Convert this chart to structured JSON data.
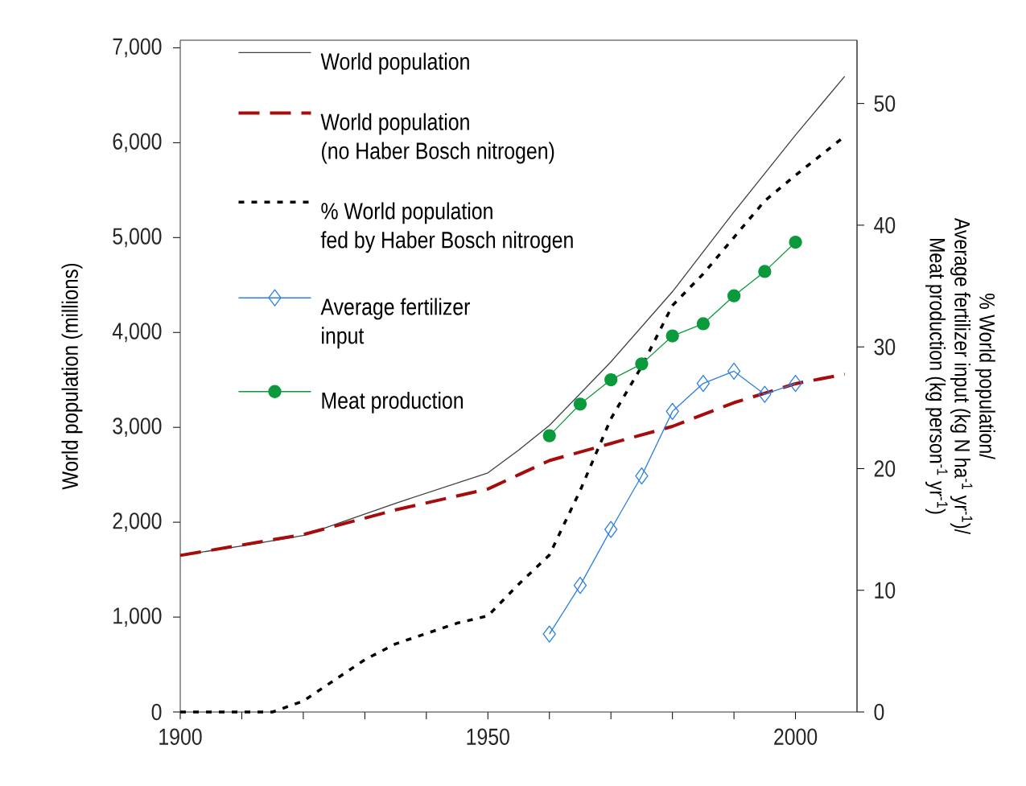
{
  "chart_data": {
    "type": "line",
    "x": [
      1900,
      1910,
      1920,
      1935,
      1950,
      1955,
      1960,
      1970,
      1980,
      1990,
      2000,
      2008
    ],
    "series": [
      {
        "name": "World population",
        "color": "#404040",
        "line_style": "solid",
        "marker": "none",
        "values": [
          1650,
          1750,
          1860,
          2200,
          2520,
          2760,
          3020,
          3690,
          4430,
          5270,
          6080,
          6700
        ]
      },
      {
        "name": "World population (no Haber Bosch nitrogen)",
        "color": "#a50d0d",
        "line_style": "dashed",
        "marker": "none",
        "values": [
          1650,
          1760,
          1870,
          2130,
          2350,
          2500,
          2650,
          2830,
          3010,
          3260,
          3460,
          3560
        ]
      },
      {
        "name": "% World population fed by Haber Bosch nitrogen",
        "color": "#000000",
        "line_style": "dotted",
        "marker": "none",
        "axis": "y2",
        "x": [
          1900,
          1915,
          1920,
          1930,
          1935,
          1945,
          1950,
          1955,
          1960,
          1965,
          1970,
          1975,
          1980,
          1985,
          1990,
          1995,
          2000,
          2008
        ],
        "values": [
          0,
          0,
          0.9,
          4.3,
          5.6,
          7.3,
          7.9,
          10.5,
          12.9,
          18.2,
          24.1,
          28.4,
          33.4,
          36,
          39,
          42,
          44.1,
          47.3
        ]
      },
      {
        "name": "Average fertilizer input",
        "color": "#2a7fdf",
        "line_style": "solid",
        "marker": "diamond",
        "axis": "y2",
        "x": [
          1960,
          1965,
          1970,
          1975,
          1980,
          1985,
          1990,
          1995,
          2000
        ],
        "values": [
          6.4,
          10.4,
          15.0,
          19.4,
          24.7,
          27.0,
          28.0,
          26.1,
          27.0
        ]
      },
      {
        "name": "Meat production",
        "color": "#0a9a3c",
        "line_style": "solid",
        "marker": "circle",
        "axis": "y2",
        "x": [
          1960,
          1965,
          1970,
          1975,
          1980,
          1985,
          1990,
          1995,
          2000
        ],
        "values": [
          22.7,
          25.3,
          27.3,
          28.6,
          30.9,
          31.9,
          34.2,
          36.2,
          38.6
        ]
      }
    ],
    "xlim": [
      1900,
      2010
    ],
    "xticks": [
      1900,
      {
        "value": 1910,
        "label": null
      },
      {
        "value": 1920,
        "label": null
      },
      {
        "value": 1930,
        "label": null
      },
      {
        "value": 1940,
        "label": null
      },
      1950,
      {
        "value": 1960,
        "label": null
      },
      {
        "value": 1970,
        "label": null
      },
      {
        "value": 1980,
        "label": null
      },
      {
        "value": 1990,
        "label": null
      },
      2000
    ],
    "ylim": [
      0,
      7080
    ],
    "yticks": [
      0,
      {
        "value": 1000,
        "label": "1,000"
      },
      {
        "value": 2000,
        "label": "2,000"
      },
      {
        "value": 3000,
        "label": "3,000"
      },
      {
        "value": 4000,
        "label": "4,000"
      },
      {
        "value": 5000,
        "label": "5,000"
      },
      {
        "value": 6000,
        "label": "6,000"
      },
      {
        "value": 7000,
        "label": "7,000"
      }
    ],
    "y2lim": [
      0,
      55.2
    ],
    "y2ticks": [
      0,
      10,
      20,
      30,
      40,
      50
    ],
    "ylabel": "World population (millions)",
    "y2label": "% World population/ Average fertilizer input (kg N ha$^{-1}$ yr$^{-1}$)/ Meat production (kg person$^{-1}$ yr$^{-1}$)",
    "legend": "top left"
  }
}
